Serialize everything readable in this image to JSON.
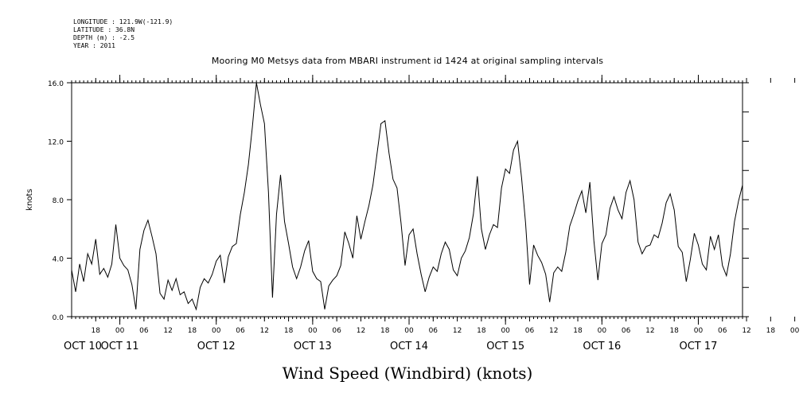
{
  "metadata_lines": [
    "LONGITUDE : 121.9W(-121.9)",
    "LATITUDE : 36.8N",
    "DEPTH (m) : -2.5",
    "YEAR : 2011"
  ],
  "chart_data": {
    "type": "line",
    "title": "Mooring M0 Metsys data from MBARI instrument id 1424 at original sampling intervals",
    "xlabel": "Wind Speed (Windbird) (knots)",
    "ylabel": "knots",
    "ylim": [
      0,
      16
    ],
    "yticks": [
      "0.0",
      "4.0",
      "8.0",
      "12.0",
      "16.0"
    ],
    "x_hour_tick_labels": [
      "18",
      "00",
      "06",
      "12",
      "18",
      "00",
      "06",
      "12",
      "18",
      "00",
      "06",
      "12",
      "18",
      "00",
      "06",
      "12",
      "18",
      "00",
      "06",
      "12",
      "18",
      "00",
      "06",
      "12",
      "18",
      "00",
      "06",
      "12",
      "18",
      "00",
      "06",
      "12"
    ],
    "x_day_labels": [
      "OCT 10",
      "OCT 11",
      "OCT 12",
      "OCT 13",
      "OCT 14",
      "OCT 15",
      "OCT 16",
      "OCT 17"
    ],
    "x_unit": "hours since 2011-10-10 00:00",
    "xlim": [
      12,
      179
    ],
    "grid": false,
    "series": [
      {
        "line_color": "#000000",
        "x": [
          12,
          13,
          14,
          15,
          16,
          17,
          18,
          19,
          20,
          21,
          22,
          23,
          24,
          25,
          26,
          27,
          28,
          29,
          30,
          31,
          32,
          33,
          34,
          35,
          36,
          37,
          38,
          39,
          40,
          41,
          42,
          43,
          44,
          45,
          46,
          47,
          48,
          49,
          50,
          51,
          52,
          53,
          54,
          55,
          56,
          57,
          58,
          59,
          60,
          61,
          62,
          63,
          64,
          65,
          66,
          67,
          68,
          69,
          70,
          71,
          72,
          73,
          74,
          75,
          76,
          77,
          78,
          79,
          80,
          81,
          82,
          83,
          84,
          85,
          86,
          87,
          88,
          89,
          90,
          91,
          92,
          93,
          94,
          95,
          96,
          97,
          98,
          99,
          100,
          101,
          102,
          103,
          104,
          105,
          106,
          107,
          108,
          109,
          110,
          111,
          112,
          113,
          114,
          115,
          116,
          117,
          118,
          119,
          120,
          121,
          122,
          123,
          124,
          125,
          126,
          127,
          128,
          129,
          130,
          131,
          132,
          133,
          134,
          135,
          136,
          137,
          138,
          139,
          140,
          141,
          142,
          143,
          144,
          145,
          146,
          147,
          148,
          149,
          150,
          151,
          152,
          153,
          154,
          155,
          156,
          157,
          158,
          159,
          160,
          161,
          162,
          163,
          164,
          165,
          166,
          167,
          168,
          169,
          170,
          171,
          172,
          173,
          174,
          175,
          176,
          177,
          178,
          179
        ],
        "values": [
          3.2,
          1.7,
          3.6,
          2.4,
          4.3,
          3.6,
          5.3,
          2.9,
          3.3,
          2.7,
          3.6,
          6.3,
          4.0,
          3.5,
          3.2,
          2.2,
          0.5,
          4.6,
          5.9,
          6.6,
          5.5,
          4.3,
          1.6,
          1.2,
          2.5,
          1.8,
          2.6,
          1.5,
          1.7,
          0.9,
          1.2,
          0.5,
          2.0,
          2.6,
          2.3,
          2.9,
          3.8,
          4.2,
          2.3,
          4.1,
          4.8,
          5.0,
          7.0,
          8.5,
          10.4,
          13.0,
          16.0,
          14.5,
          13.2,
          8.5,
          1.3,
          7.0,
          9.7,
          6.5,
          5.0,
          3.4,
          2.6,
          3.4,
          4.5,
          5.2,
          3.1,
          2.6,
          2.4,
          0.5,
          2.1,
          2.5,
          2.8,
          3.5,
          5.8,
          5.0,
          4.0,
          6.9,
          5.3,
          6.5,
          7.6,
          9.0,
          11.1,
          13.2,
          13.4,
          11.2,
          9.4,
          8.8,
          6.4,
          3.5,
          5.6,
          6.0,
          4.3,
          2.9,
          1.7,
          2.7,
          3.4,
          3.1,
          4.3,
          5.1,
          4.6,
          3.2,
          2.8,
          4.0,
          4.5,
          5.4,
          7.0,
          9.6,
          6.0,
          4.6,
          5.6,
          6.3,
          6.1,
          8.8,
          10.1,
          9.8,
          11.4,
          12.0,
          9.5,
          6.4,
          2.2,
          4.9,
          4.2,
          3.7,
          2.9,
          1.0,
          3.0,
          3.4,
          3.1,
          4.4,
          6.2,
          7.0,
          7.9,
          8.6,
          7.1,
          9.2,
          5.2,
          2.5,
          5.0,
          5.6,
          7.4,
          8.2,
          7.3,
          6.7,
          8.5,
          9.3,
          8.0,
          5.1,
          4.3,
          4.8,
          4.9,
          5.6,
          5.4,
          6.4,
          7.8,
          8.4,
          7.3,
          4.8,
          4.4,
          2.4,
          3.9,
          5.7,
          4.9,
          3.6,
          3.2,
          5.5,
          4.6,
          5.6,
          3.5,
          2.8,
          4.3,
          6.5,
          7.9,
          9.0
        ]
      }
    ]
  }
}
